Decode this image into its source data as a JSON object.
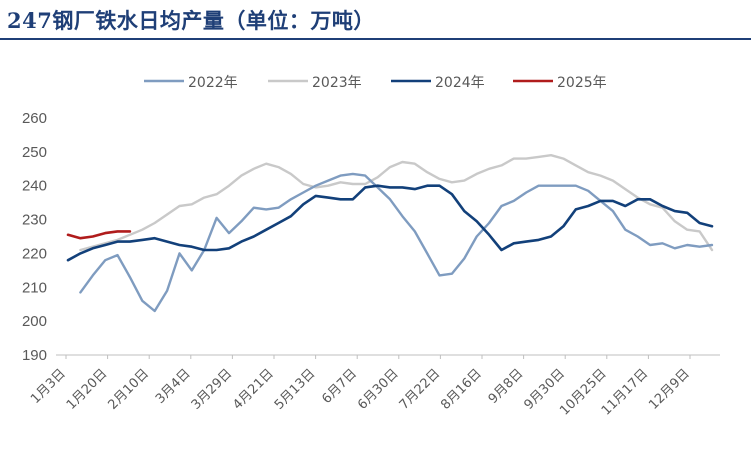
{
  "title": "247钢厂铁水日均产量（单位：万吨）",
  "colors": {
    "title": "#1f3f77",
    "axis": "#bfbfbf",
    "tick_text": "#595959"
  },
  "chart_data": {
    "type": "line",
    "title": "247钢厂铁水日均产量（单位：万吨）",
    "xlabel": "",
    "ylabel": "",
    "ylim": [
      190,
      260
    ],
    "yticks": [
      190,
      200,
      210,
      220,
      230,
      240,
      250,
      260
    ],
    "grid": false,
    "legend": "top-center",
    "x_labels": [
      "1月3日",
      "1月20日",
      "2月10日",
      "3月4日",
      "3月29日",
      "4月21日",
      "5月13日",
      "6月7日",
      "6月30日",
      "7月22日",
      "8月16日",
      "9月8日",
      "9月30日",
      "10月25日",
      "11月17日",
      "12月9日"
    ],
    "series": [
      {
        "name": "2022年",
        "color": "#7f9cc0",
        "x_start": 1,
        "values": [
          208.5,
          213.5,
          218,
          219.5,
          213,
          206,
          203,
          209,
          220,
          215,
          221,
          230.5,
          226,
          229.5,
          233.5,
          233,
          233.5,
          236,
          238,
          240,
          241.5,
          243,
          243.5,
          243,
          239.5,
          236,
          231,
          226.5,
          220,
          213.5,
          214,
          218.5,
          225,
          229,
          234,
          235.5,
          238,
          240,
          240,
          240,
          240,
          238.5,
          235.5,
          232.5,
          227,
          225,
          222.5,
          223,
          221.5,
          222.5,
          222,
          222.5
        ]
      },
      {
        "name": "2023年",
        "color": "#c9c9c9",
        "x_start": 1,
        "values": [
          221,
          222,
          223,
          224,
          225.5,
          227,
          229,
          231.5,
          234,
          234.5,
          236.5,
          237.5,
          240,
          243,
          245,
          246.5,
          245.5,
          243.5,
          240.5,
          239.5,
          240,
          241,
          240.5,
          240.5,
          242.5,
          245.5,
          247,
          246.5,
          244,
          242,
          241,
          241.5,
          243.5,
          245,
          246,
          248,
          248,
          248.5,
          249,
          248,
          246,
          244,
          243,
          241.5,
          239,
          236.5,
          234.5,
          233.5,
          229.5,
          227,
          226.5,
          221
        ]
      },
      {
        "name": "2024年",
        "color": "#12407a",
        "x_start": 0,
        "values": [
          218,
          220,
          221.5,
          222.5,
          223.5,
          223.5,
          224,
          224.5,
          223.5,
          222.5,
          222,
          221,
          221,
          221.5,
          223.5,
          225,
          227,
          229,
          231,
          234.5,
          237,
          236.5,
          236,
          236,
          239.5,
          240,
          239.5,
          239.5,
          239,
          240,
          240,
          237.5,
          232.5,
          229.5,
          225.5,
          221,
          223,
          223.5,
          224,
          225,
          228,
          233,
          234,
          235.5,
          235.5,
          234,
          236,
          236,
          234,
          232.5,
          232,
          229,
          228
        ]
      },
      {
        "name": "2025年",
        "color": "#b01c1c",
        "x_start": 0,
        "values": [
          225.5,
          224.5,
          225,
          226,
          226.5,
          226.5
        ]
      }
    ]
  }
}
